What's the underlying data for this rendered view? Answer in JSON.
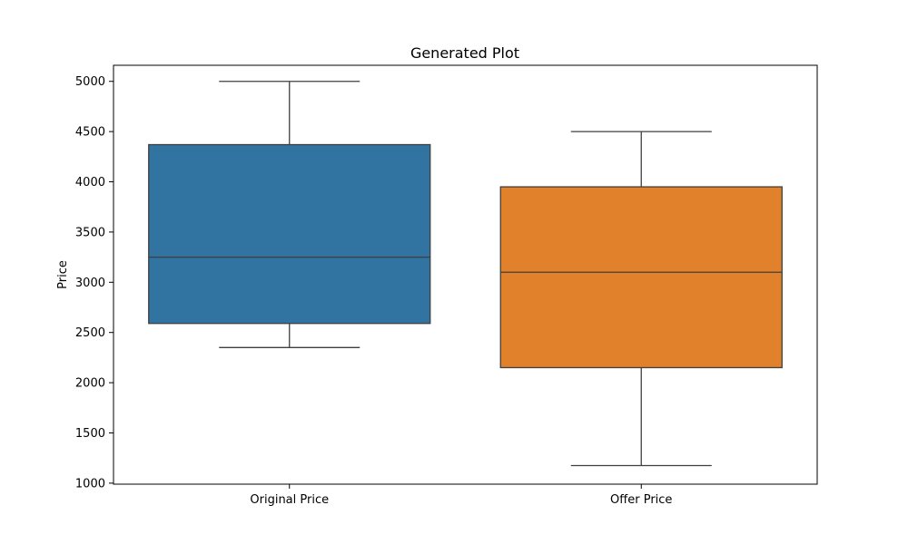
{
  "chart_data": {
    "type": "box",
    "title": "Generated Plot",
    "xlabel": "",
    "ylabel": "Price",
    "ylim": [
      990,
      5160
    ],
    "yticks": [
      1000,
      1500,
      2000,
      2500,
      3000,
      3500,
      4000,
      4500,
      5000
    ],
    "grid": false,
    "categories": [
      "Original Price",
      "Offer Price"
    ],
    "boxes": [
      {
        "category": "Original Price",
        "whisker_low": 2350,
        "q1": 2590,
        "median": 3250,
        "q3": 4370,
        "whisker_high": 5000,
        "color": "#3274a1"
      },
      {
        "category": "Offer Price",
        "whisker_low": 1175,
        "q1": 2150,
        "median": 3100,
        "q3": 3950,
        "whisker_high": 4500,
        "color": "#e1812c"
      }
    ],
    "line_color": "#3f3f3f"
  }
}
